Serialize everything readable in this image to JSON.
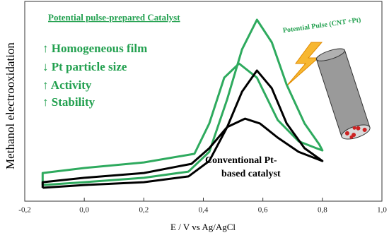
{
  "chart_data": {
    "type": "line",
    "xlabel": "E / V vs Ag/AgCl",
    "ylabel": "Methanol electrooxidation",
    "xlim": [
      -0.2,
      1.0
    ],
    "ylim": [
      0,
      100
    ],
    "xticks": [
      {
        "value": -0.2,
        "label": "-0,2"
      },
      {
        "value": 0.0,
        "label": "0,0"
      },
      {
        "value": 0.2,
        "label": "0,2"
      },
      {
        "value": 0.4,
        "label": "0,4"
      },
      {
        "value": 0.6,
        "label": "0,6"
      },
      {
        "value": 0.8,
        "label": "0,8"
      },
      {
        "value": 1.0,
        "label": "1,0"
      }
    ],
    "series": [
      {
        "color": "#2eaa5e",
        "x": [
          -0.14,
          0.0,
          0.2,
          0.35,
          0.42,
          0.48,
          0.53,
          0.58,
          0.63,
          0.68,
          0.74,
          0.79,
          0.8,
          0.78,
          0.72,
          0.65,
          0.58,
          0.52,
          0.47,
          0.42,
          0.37,
          0.2,
          0.0,
          -0.14,
          -0.14
        ],
        "values": [
          8.1,
          9.5,
          11.7,
          14.8,
          24.7,
          51,
          76,
          90.8,
          79.5,
          58.3,
          38.9,
          28.3,
          25.4,
          26.5,
          30,
          40.6,
          61.8,
          68.9,
          61.8,
          38.9,
          23.7,
          19.4,
          16.6,
          14.1,
          8.1
        ]
      },
      {
        "color": "#000000",
        "x": [
          -0.14,
          0.0,
          0.2,
          0.35,
          0.42,
          0.48,
          0.53,
          0.58,
          0.63,
          0.68,
          0.74,
          0.79,
          0.8,
          0.72,
          0.65,
          0.59,
          0.54,
          0.48,
          0.42,
          0.36,
          0.2,
          0.0,
          -0.14,
          -0.14
        ],
        "values": [
          6.7,
          8.1,
          9.5,
          12.4,
          20.1,
          37.1,
          54.8,
          65.4,
          56.5,
          38.9,
          26.5,
          21.2,
          20.1,
          24.7,
          31.8,
          38.9,
          41.3,
          37.1,
          26.5,
          18.7,
          14.1,
          11.7,
          9.5,
          6.7
        ]
      }
    ],
    "annotations": {
      "heading": "Potential pulse-prepared  Catalyst",
      "bullets": [
        "↑ Homogeneous film",
        "↓ Pt particle size",
        "↑ Activity",
        "↑ Stability"
      ],
      "conventional": [
        "Conventional Pt-",
        "based catalyst"
      ],
      "inset": "Potential Pulse (CNT +Pt)"
    }
  }
}
